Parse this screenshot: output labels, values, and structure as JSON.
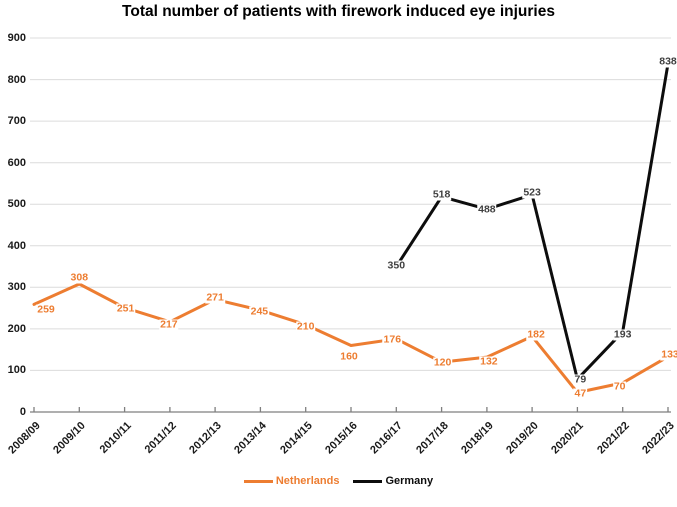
{
  "title": "Total number of patients with firework induced eye injuries",
  "colors": {
    "background": "#FFFFFF",
    "netherlands": "#ED7D31",
    "germany": "#0D0D0D",
    "germany_label": "#404040",
    "gridline": "#DCDCDC",
    "axis": "#7F7F7F",
    "tick_label": "#1A1A1A"
  },
  "y_axis": {
    "ticks": [
      0,
      100,
      200,
      300,
      400,
      500,
      600,
      700,
      800,
      900
    ]
  },
  "chart_data": {
    "type": "line",
    "title": "Total number of patients with firework induced eye injuries",
    "categories": [
      "2008/09",
      "2009/10",
      "2010/11",
      "2011/12",
      "2012/13",
      "2013/14",
      "2014/15",
      "2015/16",
      "2016/17",
      "2017/18",
      "2018/19",
      "2019/20",
      "2020/21",
      "2021/22",
      "2022/23"
    ],
    "series": [
      {
        "name": "Netherlands",
        "color": "#ED7D31",
        "label_color": "#ED7D31",
        "values": [
          259,
          308,
          251,
          217,
          271,
          245,
          210,
          160,
          176,
          120,
          132,
          182,
          47,
          70,
          133
        ],
        "label_offsets": [
          [
            12,
            6
          ],
          [
            0,
            -6
          ],
          [
            1,
            1
          ],
          [
            -1,
            3
          ],
          [
            0,
            -1
          ],
          [
            -1,
            2
          ],
          [
            0,
            2
          ],
          [
            -2,
            11
          ],
          [
            -4,
            1
          ],
          [
            1,
            1
          ],
          [
            2,
            5
          ],
          [
            4,
            -1
          ],
          [
            3,
            1
          ],
          [
            -3,
            4
          ],
          [
            2,
            -2
          ]
        ]
      },
      {
        "name": "Germany",
        "color": "#0D0D0D",
        "label_color": "#404040",
        "values": [
          null,
          null,
          null,
          null,
          null,
          null,
          null,
          null,
          350,
          518,
          488,
          523,
          79,
          193,
          838
        ],
        "label_offsets": [
          null,
          null,
          null,
          null,
          null,
          null,
          null,
          null,
          [
            0,
            -1
          ],
          [
            0,
            -2
          ],
          [
            0,
            1
          ],
          [
            0,
            -2
          ],
          [
            3,
            1
          ],
          [
            0,
            3
          ],
          [
            0,
            -2
          ]
        ]
      }
    ],
    "ylim": [
      0,
      900
    ],
    "grid": true,
    "gridlines": "horizontal",
    "legend_position": "bottom"
  },
  "legend": {
    "items": [
      {
        "label": "Netherlands"
      },
      {
        "label": "Germany"
      }
    ]
  }
}
